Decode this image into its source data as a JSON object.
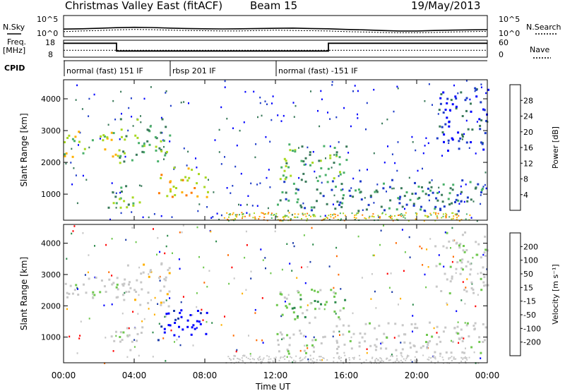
{
  "header": {
    "station": "Christmas Valley East (fitACF)",
    "beam": "Beam 15",
    "date": "19/May/2013"
  },
  "panels": {
    "sky": {
      "left_label": "N.Sky",
      "right_label": "N.Search",
      "left_ticks": [
        "10^5",
        "10^0"
      ],
      "right_ticks": [
        "10^5",
        "10^0"
      ]
    },
    "freq": {
      "left_label_1": "Freq.",
      "left_label_2": "[MHz]",
      "right_label": "Nave",
      "left_ticks": [
        "18",
        "8"
      ],
      "right_ticks": [
        "60",
        "0"
      ]
    },
    "cpid": {
      "label": "CPID",
      "segments": [
        {
          "label": "normal (fast) 151 IF",
          "start": 0,
          "end": 6.0
        },
        {
          "label": "rbsp 201 IF",
          "start": 6.0,
          "end": 12.0
        },
        {
          "label": "normal (fast) -151 IF",
          "start": 12.0,
          "end": 24.0
        }
      ]
    }
  },
  "colors": {
    "power": [
      "#0000ff",
      "#1e3cc8",
      "#3a7a5a",
      "#49b06a",
      "#a8d820",
      "#ffb000",
      "#ff7a00",
      "#ff3300",
      "#ff0000"
    ],
    "velocity": [
      "#ff0000",
      "#ff6a00",
      "#ffb000",
      "#c8c8c8",
      "#c8c8c8",
      "#70c850",
      "#2c8a4a",
      "#1a3aa8",
      "#0000ff"
    ]
  },
  "chart_data": [
    {
      "type": "line",
      "title": "N.Sky / N.Search",
      "x": [
        0,
        1,
        2,
        3,
        4,
        5,
        6,
        7,
        8,
        9,
        10,
        11,
        12,
        13,
        14,
        15,
        16,
        17,
        18,
        19,
        20,
        21,
        22,
        23,
        24
      ],
      "series": [
        {
          "name": "N.Sky",
          "values": [
            50,
            60,
            80,
            120,
            150,
            130,
            90,
            70,
            60,
            55,
            60,
            70,
            80,
            90,
            70,
            60,
            40,
            30,
            20,
            15,
            15,
            20,
            25,
            30,
            35
          ]
        },
        {
          "name": "N.Search",
          "values": [
            10,
            15,
            20,
            30,
            40,
            35,
            25,
            20,
            18,
            15,
            15,
            20,
            25,
            20,
            18,
            15,
            10,
            8,
            6,
            5,
            5,
            6,
            8,
            10,
            12
          ]
        }
      ],
      "ylim": [
        1,
        100000
      ],
      "ylog": true
    },
    {
      "type": "line",
      "title": "Freq. [MHz] / Nave",
      "x": [
        0,
        3.0,
        3.0,
        15.0,
        15.0,
        24
      ],
      "series": [
        {
          "name": "Freq.",
          "values": [
            16.5,
            16.5,
            11.5,
            11.5,
            16.5,
            16.5
          ]
        },
        {
          "name": "Nave",
          "values": [
            24,
            24,
            24,
            24,
            24,
            24
          ]
        }
      ],
      "ylim": [
        8,
        18
      ],
      "y2lim": [
        0,
        60
      ]
    },
    {
      "type": "heatmap",
      "title": "Power [dB]",
      "xlabel": "Time UT",
      "ylabel": "Slant Range [km]",
      "xlim": [
        0,
        24
      ],
      "ylim": [
        180,
        4600
      ],
      "x_ticks": [
        "00:00",
        "04:00",
        "08:00",
        "12:00",
        "16:00",
        "20:00",
        "00:00"
      ],
      "y_ticks": [
        1000,
        2000,
        3000,
        4000
      ],
      "colorbar_label": "Power [dB]",
      "colorbar_ticks": [
        "4",
        "8",
        "12",
        "16",
        "20",
        "24",
        "28"
      ],
      "regions": [
        {
          "t0": 0.0,
          "t1": 3.0,
          "r0": 2200,
          "r1": 3000,
          "level": 4
        },
        {
          "t0": 2.5,
          "t1": 4.5,
          "r0": 600,
          "r1": 1400,
          "level": 3
        },
        {
          "t0": 3.0,
          "t1": 6.0,
          "r0": 2000,
          "r1": 3400,
          "level": 3
        },
        {
          "t0": 5.3,
          "t1": 8.2,
          "r0": 900,
          "r1": 1900,
          "level": 5
        },
        {
          "t0": 12.0,
          "t1": 24.0,
          "r0": 500,
          "r1": 1500,
          "level": 2
        },
        {
          "t0": 12.0,
          "t1": 16.0,
          "r0": 1500,
          "r1": 2600,
          "level": 3
        },
        {
          "t0": 21.0,
          "t1": 24.0,
          "r0": 2400,
          "r1": 4400,
          "level": 1
        }
      ]
    },
    {
      "type": "heatmap",
      "title": "Velocity",
      "xlabel": "Time UT",
      "ylabel": "Slant Range [km]",
      "xlim": [
        0,
        24
      ],
      "ylim": [
        180,
        4600
      ],
      "x_ticks": [
        "00:00",
        "04:00",
        "08:00",
        "12:00",
        "16:00",
        "20:00",
        "00:00"
      ],
      "y_ticks": [
        1000,
        2000,
        3000,
        4000
      ],
      "colorbar_label": "Velocity [m s⁻¹]",
      "colorbar_ticks": [
        "200",
        "100",
        "50",
        "15",
        "-15",
        "-50",
        "-100",
        "-200"
      ],
      "regions": [
        {
          "t0": 0.0,
          "t1": 3.0,
          "r0": 2200,
          "r1": 3000,
          "level": 0
        },
        {
          "t0": 2.5,
          "t1": 4.5,
          "r0": 600,
          "r1": 1400,
          "level": 0
        },
        {
          "t0": 3.0,
          "t1": 6.0,
          "r0": 2000,
          "r1": 3400,
          "level": -1
        },
        {
          "t0": 5.3,
          "t1": 8.2,
          "r0": 900,
          "r1": 1900,
          "level": 4
        },
        {
          "t0": 12.0,
          "t1": 24.0,
          "r0": 500,
          "r1": 1500,
          "level": 0
        },
        {
          "t0": 12.0,
          "t1": 16.0,
          "r0": 1500,
          "r1": 2600,
          "level": 1
        },
        {
          "t0": 21.0,
          "t1": 24.0,
          "r0": 2400,
          "r1": 4400,
          "level": 0
        }
      ]
    }
  ]
}
